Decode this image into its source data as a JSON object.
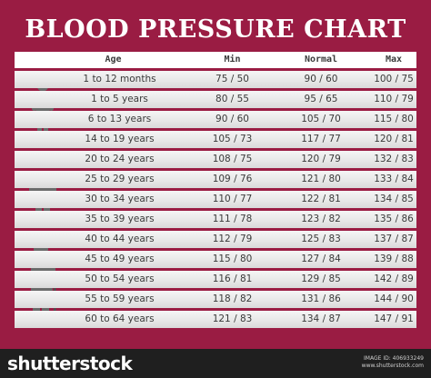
{
  "title": "BLOOD PRESSURE CHART",
  "table": {
    "headers": [
      "Age",
      "Min",
      "Normal",
      "Max"
    ],
    "rows": [
      {
        "age": "1 to 12 months",
        "min": "75 / 50",
        "normal": "90 / 60",
        "max": "100 / 75"
      },
      {
        "age": "1 to 5 years",
        "min": "80 / 55",
        "normal": "95 / 65",
        "max": "110 / 79"
      },
      {
        "age": "6 to 13 years",
        "min": "90 / 60",
        "normal": "105 / 70",
        "max": "115 / 80"
      },
      {
        "age": "14 to 19 years",
        "min": "105 / 73",
        "normal": "117 / 77",
        "max": "120 / 81"
      },
      {
        "age": "20 to 24 years",
        "min": "108 / 75",
        "normal": "120 / 79",
        "max": "132 / 83"
      },
      {
        "age": "25 to 29 years",
        "min": "109 / 76",
        "normal": "121 / 80",
        "max": "133 / 84"
      },
      {
        "age": "30 to 34 years",
        "min": "110 / 77",
        "normal": "122 / 81",
        "max": "134 / 85"
      },
      {
        "age": "35 to 39 years",
        "min": "111 / 78",
        "normal": "123 / 82",
        "max": "135 / 86"
      },
      {
        "age": "40 to 44 years",
        "min": "112 / 79",
        "normal": "125 / 83",
        "max": "137 / 87"
      },
      {
        "age": "45 to 49 years",
        "min": "115 / 80",
        "normal": "127 / 84",
        "max": "139 / 88"
      },
      {
        "age": "50 to 54 years",
        "min": "116 / 81",
        "normal": "129 / 85",
        "max": "142 / 89"
      },
      {
        "age": "55 to 59 years",
        "min": "118 / 82",
        "normal": "131 / 86",
        "max": "144 / 90"
      },
      {
        "age": "60 to 64 years",
        "min": "121 / 83",
        "normal": "134 / 87",
        "max": "147 / 91"
      }
    ]
  },
  "figures": [
    {
      "icon": "child-icon"
    },
    {
      "icon": "businessman-icon"
    },
    {
      "icon": "elderly-man-with-cane-icon"
    }
  ],
  "colors": {
    "background": "#9a1c43",
    "header_row": "#ffffff",
    "body_row": "#e7e7e7",
    "text": "#3a3a3a",
    "figure": "#6b6b6b",
    "footer": "#1f1f1f"
  },
  "footer": {
    "logo": "shutterstock",
    "image_id": "IMAGE ID: 406933249",
    "site": "www.shutterstock.com"
  }
}
